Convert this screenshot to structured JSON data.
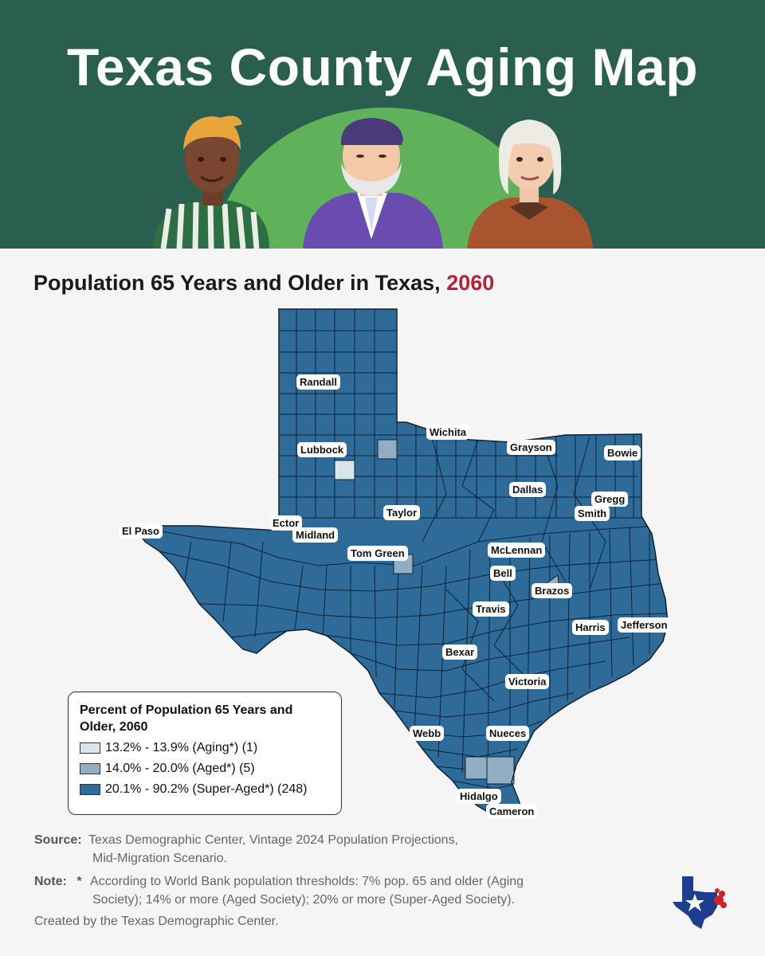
{
  "header": {
    "title": "Texas County Aging Map",
    "bg_color": "#2a5e4e",
    "arc_color": "#5fb25a"
  },
  "subtitle": {
    "main": "Population 65 Years and Older in Texas, ",
    "year": "2060",
    "year_color": "#b0243b"
  },
  "map": {
    "fill_super_aged": "#2f6b99",
    "fill_aged": "#92aec5",
    "fill_aging": "#d8e6ec",
    "counties": [
      "Randall",
      "Lubbock",
      "Wichita",
      "Grayson",
      "Bowie",
      "Dallas",
      "Gregg",
      "Smith",
      "Ector",
      "Midland",
      "Taylor",
      "El Paso",
      "Tom Green",
      "McLennan",
      "Bell",
      "Brazos",
      "Travis",
      "Harris",
      "Jefferson",
      "Bexar",
      "Victoria",
      "Webb",
      "Nueces",
      "Hidalgo",
      "Cameron"
    ]
  },
  "legend": {
    "title": "Percent of Population 65 Years and Older, 2060",
    "items": [
      {
        "label": "13.2% - 13.9% (Aging*) (1)",
        "color": "#d8e6ec"
      },
      {
        "label": "14.0% - 20.0% (Aged*) (5)",
        "color": "#92aec5"
      },
      {
        "label": "20.1% - 90.2% (Super-Aged*) (248)",
        "color": "#2f6b99"
      }
    ]
  },
  "footer": {
    "source_label": "Source:",
    "source_line1": "Texas Demographic Center, Vintage 2024 Population Projections,",
    "source_line2": "Mid-Migration Scenario.",
    "note_label": "Note:",
    "note_star": "*",
    "note_line1": "According to World Bank population thresholds: 7% pop. 65 and older (Aging",
    "note_line2": "Society); 14% or more (Aged Society); 20% or more (Super-Aged Society).",
    "credit": "Created by the Texas Demographic Center."
  }
}
